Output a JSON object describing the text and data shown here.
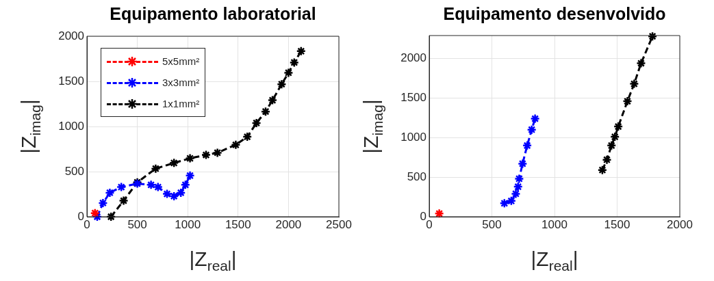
{
  "chart_data": [
    {
      "type": "line",
      "title": "Equipamento laboratorial",
      "xlabel": "|Z$_{real}$|",
      "ylabel": "|Z$_{imag}$|",
      "xlim": [
        0,
        2500
      ],
      "xticks": [
        0,
        500,
        1000,
        1500,
        2000,
        2500
      ],
      "ylim": [
        0,
        2000
      ],
      "yticks": [
        0,
        500,
        1000,
        1500,
        2000
      ],
      "grid": true,
      "legend": "top left",
      "marker": "cross",
      "line_style": "dashed",
      "series": [
        {
          "name": "5x5mm²",
          "color": "#ff0000",
          "x": [
            80
          ],
          "values": [
            40
          ]
        },
        {
          "name": "3x3mm²",
          "color": "#0000ff",
          "x": [
            102,
            159,
            227,
            341,
            500,
            636,
            705,
            795,
            864,
            932,
            977,
            1023
          ],
          "values": [
            0,
            152,
            266,
            329,
            367,
            354,
            329,
            253,
            228,
            266,
            354,
            456
          ]
        },
        {
          "name": "1x1mm²",
          "color": "#000000",
          "x": [
            239,
            364,
            500,
            682,
            864,
            1023,
            1182,
            1295,
            1477,
            1591,
            1682,
            1773,
            1841,
            1932,
            2000,
            2057,
            2125
          ],
          "values": [
            0,
            178,
            381,
            533,
            596,
            647,
            685,
            709,
            797,
            886,
            1038,
            1165,
            1291,
            1468,
            1595,
            1709,
            1835
          ]
        }
      ]
    },
    {
      "type": "line",
      "title": "Equipamento desenvolvido",
      "xlabel": "|Z$_{real}$|",
      "ylabel": "|Z$_{imag}$|",
      "xlim": [
        0,
        2000
      ],
      "xticks": [
        0,
        500,
        1000,
        1500,
        2000
      ],
      "ylim": [
        0,
        2290
      ],
      "yticks": [
        0,
        500,
        1000,
        1500,
        2000
      ],
      "grid": true,
      "marker": "cross",
      "line_style": "dashed",
      "series": [
        {
          "color": "#ff0000",
          "x": [
            80
          ],
          "values": [
            40
          ]
        },
        {
          "color": "#0000ff",
          "x": [
            600,
            655,
            691,
            709,
            718,
            745,
            782,
            818,
            845
          ],
          "values": [
            170,
            200,
            290,
            380,
            480,
            670,
            900,
            1100,
            1240
          ]
        },
        {
          "color": "#000000",
          "x": [
            1382,
            1418,
            1455,
            1482,
            1509,
            1582,
            1636,
            1691,
            1782
          ],
          "values": [
            590,
            720,
            900,
            1010,
            1140,
            1460,
            1680,
            1940,
            2280
          ]
        }
      ]
    }
  ]
}
